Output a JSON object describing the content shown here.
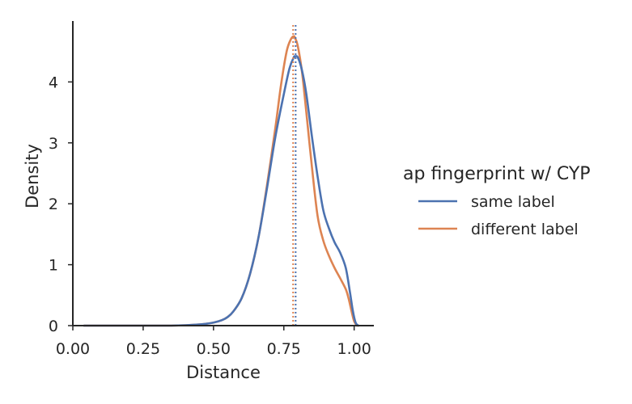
{
  "chart_data": {
    "type": "line",
    "kind": "kde",
    "title": "",
    "xlabel": "Distance",
    "ylabel": "Density",
    "xlim": [
      0.0,
      1.07
    ],
    "ylim": [
      0.0,
      5.0
    ],
    "xticks": [
      0.0,
      0.25,
      0.5,
      0.75,
      1.0
    ],
    "xtick_labels": [
      "0.00",
      "0.25",
      "0.50",
      "0.75",
      "1.00"
    ],
    "yticks": [
      0,
      1,
      2,
      3,
      4
    ],
    "ytick_labels": [
      "0",
      "1",
      "2",
      "3",
      "4"
    ],
    "grid": false,
    "legend": {
      "title": "ap fingerprint w/ CYP",
      "placement": "outside-right"
    },
    "series": [
      {
        "name": "same label",
        "color": "#4c72b0",
        "mean_line": 0.792,
        "x": [
          0.04,
          0.2,
          0.35,
          0.45,
          0.5,
          0.53,
          0.55,
          0.57,
          0.6,
          0.63,
          0.66,
          0.69,
          0.72,
          0.75,
          0.77,
          0.785,
          0.79,
          0.8,
          0.815,
          0.83,
          0.85,
          0.87,
          0.89,
          0.91,
          0.93,
          0.95,
          0.97,
          0.985,
          0.995,
          1.005,
          1.015
        ],
        "y": [
          0.0,
          0.0,
          0.0,
          0.02,
          0.05,
          0.09,
          0.14,
          0.23,
          0.45,
          0.85,
          1.45,
          2.25,
          3.1,
          3.8,
          4.22,
          4.4,
          4.42,
          4.4,
          4.18,
          3.8,
          3.1,
          2.45,
          1.9,
          1.6,
          1.37,
          1.2,
          0.95,
          0.55,
          0.25,
          0.05,
          0.0
        ]
      },
      {
        "name": "different label",
        "color": "#dd8452",
        "mean_line": 0.783,
        "x": [
          0.04,
          0.2,
          0.35,
          0.45,
          0.5,
          0.53,
          0.55,
          0.57,
          0.6,
          0.63,
          0.66,
          0.69,
          0.72,
          0.74,
          0.76,
          0.775,
          0.785,
          0.79,
          0.8,
          0.815,
          0.83,
          0.85,
          0.87,
          0.89,
          0.91,
          0.93,
          0.95,
          0.97,
          0.98,
          0.99,
          1.0,
          1.01
        ],
        "y": [
          0.0,
          0.0,
          0.0,
          0.02,
          0.05,
          0.09,
          0.14,
          0.23,
          0.45,
          0.85,
          1.45,
          2.3,
          3.25,
          3.95,
          4.5,
          4.7,
          4.75,
          4.72,
          4.58,
          4.15,
          3.5,
          2.6,
          1.8,
          1.4,
          1.15,
          0.95,
          0.78,
          0.6,
          0.45,
          0.25,
          0.07,
          0.0
        ]
      }
    ]
  }
}
